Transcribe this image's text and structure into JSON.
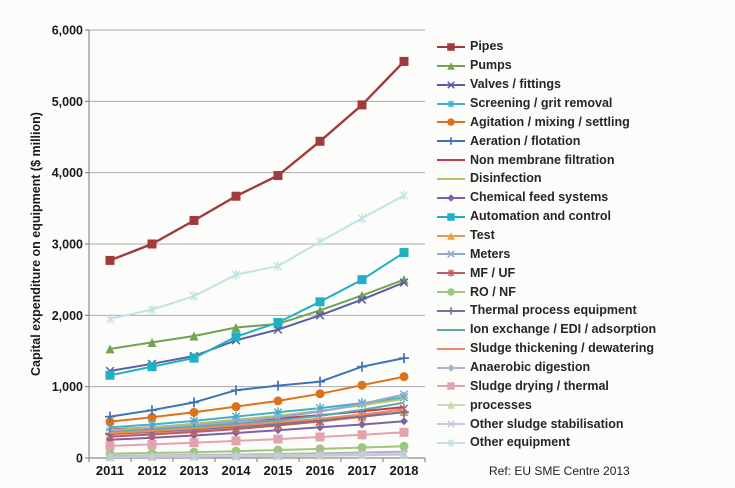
{
  "chart_data": {
    "type": "line",
    "title": "",
    "xlabel": "",
    "ylabel": "Capital expenditure on equipment ($ million)",
    "footnote": "Ref: EU SME Centre 2013",
    "x": [
      "2011",
      "2012",
      "2013",
      "2014",
      "2015",
      "2016",
      "2017",
      "2018"
    ],
    "ylim": [
      0,
      6000
    ],
    "ytick_interval": 1000,
    "ytick_labels": [
      "0",
      "1,000",
      "2,000",
      "3,000",
      "4,000",
      "5,000",
      "6,000"
    ],
    "grid": true,
    "legend_position": "right",
    "axis_color": "#8C8C8C",
    "grid_color": "#ABABAB",
    "series": [
      {
        "name": "Pipes",
        "color": "#A03B3B",
        "marker": "square",
        "values": [
          2770,
          3000,
          3330,
          3670,
          3960,
          4440,
          4950,
          5560
        ]
      },
      {
        "name": "Pumps",
        "color": "#71A350",
        "marker": "triangle",
        "values": [
          1530,
          1620,
          1710,
          1830,
          1880,
          2070,
          2280,
          2500
        ]
      },
      {
        "name": "Valves / fittings",
        "color": "#5A5FA5",
        "marker": "x",
        "values": [
          1220,
          1320,
          1430,
          1650,
          1800,
          2000,
          2220,
          2460
        ]
      },
      {
        "name": "Screening / grit removal",
        "color": "#45AECB",
        "marker": "asterisk",
        "values": [
          430,
          470,
          520,
          580,
          640,
          700,
          770,
          850
        ]
      },
      {
        "name": "Agitation / mixing / settling",
        "color": "#DC7319",
        "marker": "circle",
        "values": [
          510,
          570,
          640,
          720,
          800,
          900,
          1020,
          1140
        ]
      },
      {
        "name": "Aeration / flotation",
        "color": "#3C72B8",
        "marker": "plus",
        "values": [
          580,
          670,
          780,
          950,
          1015,
          1070,
          1280,
          1400
        ]
      },
      {
        "name": "Non membrane filtration",
        "color": "#C13A50",
        "marker": "none",
        "values": [
          400,
          430,
          470,
          515,
          555,
          600,
          655,
          715
        ]
      },
      {
        "name": "Disinfection",
        "color": "#B2C266",
        "marker": "none",
        "values": [
          390,
          430,
          480,
          535,
          590,
          660,
          740,
          830
        ]
      },
      {
        "name": "Chemical feed systems",
        "color": "#7C61A9",
        "marker": "diamond",
        "values": [
          255,
          285,
          315,
          350,
          390,
          430,
          470,
          515
        ]
      },
      {
        "name": "Automation and control",
        "color": "#1FB0C3",
        "marker": "square",
        "values": [
          1160,
          1280,
          1400,
          1700,
          1900,
          2190,
          2500,
          2880
        ]
      },
      {
        "name": "Test",
        "color": "#EC9A49",
        "marker": "triangle",
        "values": [
          330,
          355,
          385,
          420,
          460,
          510,
          575,
          650
        ]
      },
      {
        "name": "Meters",
        "color": "#92A9D4",
        "marker": "x",
        "values": [
          370,
          410,
          455,
          510,
          570,
          650,
          760,
          890
        ]
      },
      {
        "name": "MF / UF",
        "color": "#C25B68",
        "marker": "asterisk",
        "values": [
          300,
          330,
          365,
          405,
          455,
          515,
          595,
          690
        ]
      },
      {
        "name": "RO / NF",
        "color": "#9CC87B",
        "marker": "circle",
        "values": [
          60,
          70,
          82,
          96,
          112,
          128,
          146,
          165
        ]
      },
      {
        "name": "Thermal process equipment",
        "color": "#73739E",
        "marker": "plus",
        "values": [
          340,
          370,
          400,
          440,
          480,
          530,
          580,
          640
        ]
      },
      {
        "name": "Ion exchange / EDI / adsorption",
        "color": "#5AA7AE",
        "marker": "none",
        "values": [
          360,
          395,
          435,
          480,
          530,
          590,
          675,
          775
        ]
      },
      {
        "name": "Sludge thickening / dewatering",
        "color": "#EC8C5C",
        "marker": "none",
        "values": [
          350,
          380,
          415,
          455,
          500,
          550,
          610,
          680
        ]
      },
      {
        "name": "Anaerobic digestion",
        "color": "#B0B0C8",
        "marker": "diamond",
        "values": [
          30,
          35,
          42,
          48,
          56,
          65,
          77,
          90
        ]
      },
      {
        "name": "Sludge drying / thermal",
        "color": "#E2A3AE",
        "marker": "square",
        "values": [
          170,
          190,
          215,
          240,
          265,
          295,
          325,
          360
        ]
      },
      {
        "name": "processes",
        "color": "#C4DCB0",
        "marker": "triangle",
        "values": [
          20,
          24,
          28,
          33,
          38,
          44,
          52,
          60
        ]
      },
      {
        "name": "Other sludge stabilisation",
        "color": "#C6C6DC",
        "marker": "x",
        "values": [
          12,
          15,
          18,
          22,
          26,
          31,
          38,
          46
        ]
      },
      {
        "name": "Other equipment",
        "color": "#C2E2E6",
        "marker": "asterisk",
        "values": [
          1950,
          2080,
          2270,
          2570,
          2690,
          3030,
          3360,
          3680
        ]
      }
    ]
  }
}
